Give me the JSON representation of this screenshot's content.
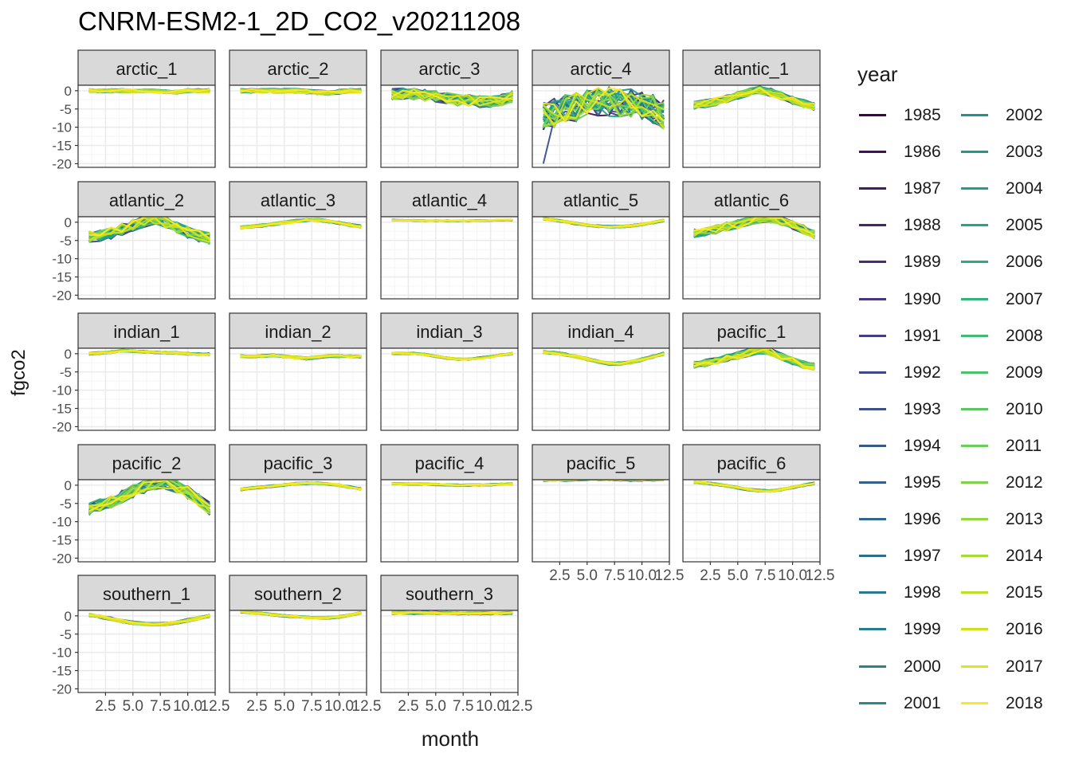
{
  "title": "CNRM-ESM2-1_2D_CO2_v20211208",
  "colors": {
    "panel_border": "#333333",
    "strip_fill": "#d9d9d9",
    "grid_major": "#ebebeb",
    "grid_minor": "#f5f5f5"
  },
  "chart_data": {
    "type": "line",
    "title": "CNRM-ESM2-1_2D_CO2_v20211208",
    "xlabel": "month",
    "ylabel": "fgco2",
    "xlim": [
      0,
      12.5
    ],
    "ylim": [
      -21,
      1.5
    ],
    "x_ticks": [
      2.5,
      5.0,
      7.5,
      10.0,
      12.5
    ],
    "x_tick_labels": [
      "2.5",
      "5.0",
      "7.5",
      "10.0",
      "12.5"
    ],
    "y_ticks": [
      0,
      -5,
      -10,
      -15,
      -20
    ],
    "y_tick_labels": [
      "0",
      "-5",
      "-10",
      "-15",
      "-20"
    ],
    "grid": true,
    "legend": {
      "title": "year",
      "position": "right",
      "columns": 2
    },
    "x": [
      1,
      2,
      3,
      4,
      5,
      6,
      7,
      8,
      9,
      10,
      11,
      12
    ],
    "years": [
      1985,
      1986,
      1987,
      1988,
      1989,
      1990,
      1991,
      1992,
      1993,
      1994,
      1995,
      1996,
      1997,
      1998,
      1999,
      2000,
      2001,
      2002,
      2003,
      2004,
      2005,
      2006,
      2007,
      2008,
      2009,
      2010,
      2011,
      2012,
      2013,
      2014,
      2015,
      2016,
      2017,
      2018
    ],
    "year_colors": [
      "#440154",
      "#470d60",
      "#48186a",
      "#482374",
      "#472c7a",
      "#45367f",
      "#433f84",
      "#404688",
      "#3c508b",
      "#39588c",
      "#35608d",
      "#32678e",
      "#2f6f8e",
      "#2c768e",
      "#2a7d8e",
      "#27848e",
      "#258b8d",
      "#22928c",
      "#20998a",
      "#1fa088",
      "#21a685",
      "#27ad81",
      "#32b47a",
      "#3fbb74",
      "#4dc16b",
      "#5dc762",
      "#6dcd59",
      "#80d24e",
      "#93d741",
      "#a7db35",
      "#bbdf27",
      "#cfe11c",
      "#e2e418",
      "#fde725"
    ],
    "panels": [
      {
        "name": "arctic_1",
        "mean": [
          0,
          0,
          0,
          0,
          0,
          0,
          0,
          -0.3,
          -0.4,
          0,
          0,
          0
        ],
        "spread": 0.5
      },
      {
        "name": "arctic_2",
        "mean": [
          0,
          0,
          0,
          0,
          0,
          0,
          -0.2,
          -0.4,
          -0.6,
          -0.3,
          0,
          0
        ],
        "spread": 0.6
      },
      {
        "name": "arctic_3",
        "mean": [
          -1,
          -0.8,
          -0.9,
          -1.2,
          -1.5,
          -2,
          -2.5,
          -2.6,
          -3,
          -3,
          -2.6,
          -1.5
        ],
        "spread": 1.6
      },
      {
        "name": "arctic_4",
        "mean": [
          -7,
          -6,
          -5,
          -4.5,
          -3.5,
          -3,
          -3,
          -3.2,
          -3.5,
          -4,
          -5,
          -6.5
        ],
        "spread": 4
      },
      {
        "name": "atlantic_1",
        "mean": [
          -4,
          -3.5,
          -3,
          -2.2,
          -1.2,
          -0.5,
          0.3,
          -0.4,
          -1.5,
          -2.6,
          -3.5,
          -4.3
        ],
        "spread": 1.1
      },
      {
        "name": "atlantic_2",
        "mean": [
          -4,
          -3.6,
          -3,
          -2,
          -0.8,
          0.2,
          1,
          0,
          -1.5,
          -2.8,
          -3.8,
          -4.5
        ],
        "spread": 1.6
      },
      {
        "name": "atlantic_3",
        "mean": [
          -1.5,
          -1.2,
          -0.9,
          -0.5,
          -0.1,
          0.3,
          0.5,
          0.6,
          0.3,
          -0.2,
          -0.8,
          -1.2
        ],
        "spread": 0.4
      },
      {
        "name": "atlantic_4",
        "mean": [
          0.6,
          0.5,
          0.5,
          0.4,
          0.4,
          0.4,
          0.4,
          0.4,
          0.5,
          0.5,
          0.6,
          0.6
        ],
        "spread": 0.15
      },
      {
        "name": "atlantic_5",
        "mean": [
          1,
          0.6,
          0.1,
          -0.4,
          -0.8,
          -1.1,
          -1.2,
          -1.2,
          -1,
          -0.6,
          -0.1,
          0.5
        ],
        "spread": 0.3
      },
      {
        "name": "atlantic_6",
        "mean": [
          -3,
          -2.5,
          -2,
          -1.2,
          -0.5,
          0.4,
          1,
          1,
          0.3,
          -0.8,
          -2,
          -3.3
        ],
        "spread": 1.2
      },
      {
        "name": "indian_1",
        "mean": [
          0,
          0.2,
          0.4,
          0.9,
          0.7,
          0.5,
          0.4,
          0.3,
          0.2,
          0,
          -0.1,
          -0.1
        ],
        "spread": 0.3
      },
      {
        "name": "indian_2",
        "mean": [
          -0.6,
          -0.8,
          -0.6,
          -0.5,
          -0.7,
          -1,
          -1.3,
          -1,
          -0.6,
          -0.6,
          -0.7,
          -0.8
        ],
        "spread": 0.35
      },
      {
        "name": "indian_3",
        "mean": [
          0.1,
          0.1,
          0.1,
          -0.2,
          -0.7,
          -1.2,
          -1.5,
          -1.5,
          -1.2,
          -0.8,
          -0.3,
          0
        ],
        "spread": 0.25
      },
      {
        "name": "indian_4",
        "mean": [
          0.5,
          0.2,
          -0.2,
          -0.8,
          -1.5,
          -2.2,
          -2.7,
          -2.7,
          -2.3,
          -1.6,
          -0.8,
          0
        ],
        "spread": 0.4
      },
      {
        "name": "pacific_1",
        "mean": [
          -3,
          -2.6,
          -2,
          -1.2,
          -0.5,
          0.3,
          1,
          0.5,
          -0.8,
          -2,
          -3,
          -3.5
        ],
        "spread": 1
      },
      {
        "name": "pacific_2",
        "mean": [
          -6.5,
          -5.5,
          -4.5,
          -3.2,
          -1.7,
          -0.5,
          0.3,
          0.7,
          -0.3,
          -2,
          -4,
          -6.5
        ],
        "spread": 1.8
      },
      {
        "name": "pacific_3",
        "mean": [
          -1.2,
          -0.8,
          -0.5,
          -0.2,
          0.1,
          0.4,
          0.5,
          0.5,
          0.3,
          0,
          -0.5,
          -1
        ],
        "spread": 0.3
      },
      {
        "name": "pacific_4",
        "mean": [
          0.4,
          0.4,
          0.3,
          0.3,
          0.2,
          0.1,
          0,
          0,
          0,
          0.1,
          0.2,
          0.3
        ],
        "spread": 0.25
      },
      {
        "name": "pacific_5",
        "mean": [
          1.4,
          1.6,
          1.5,
          1.7,
          1.8,
          1.8,
          1.7,
          1.6,
          1.5,
          1.6,
          1.6,
          1.7
        ],
        "spread": 0.45
      },
      {
        "name": "pacific_6",
        "mean": [
          0.8,
          0.6,
          0.3,
          -0.2,
          -0.7,
          -1.2,
          -1.5,
          -1.6,
          -1.2,
          -0.6,
          0,
          0.5
        ],
        "spread": 0.3
      },
      {
        "name": "southern_1",
        "mean": [
          0.3,
          -0.2,
          -0.8,
          -1.4,
          -1.9,
          -2.2,
          -2.3,
          -2.2,
          -1.8,
          -1.2,
          -0.6,
          0
        ],
        "spread": 0.4
      },
      {
        "name": "southern_2",
        "mean": [
          1.2,
          0.9,
          0.6,
          0.3,
          0,
          -0.2,
          -0.4,
          -0.5,
          -0.5,
          -0.3,
          0.2,
          0.8
        ],
        "spread": 0.3
      },
      {
        "name": "southern_3",
        "mean": [
          0.8,
          0.9,
          0.8,
          0.9,
          0.8,
          0.8,
          0.7,
          0.7,
          0.7,
          0.7,
          0.7,
          0.8
        ],
        "spread": 0.35
      }
    ]
  }
}
